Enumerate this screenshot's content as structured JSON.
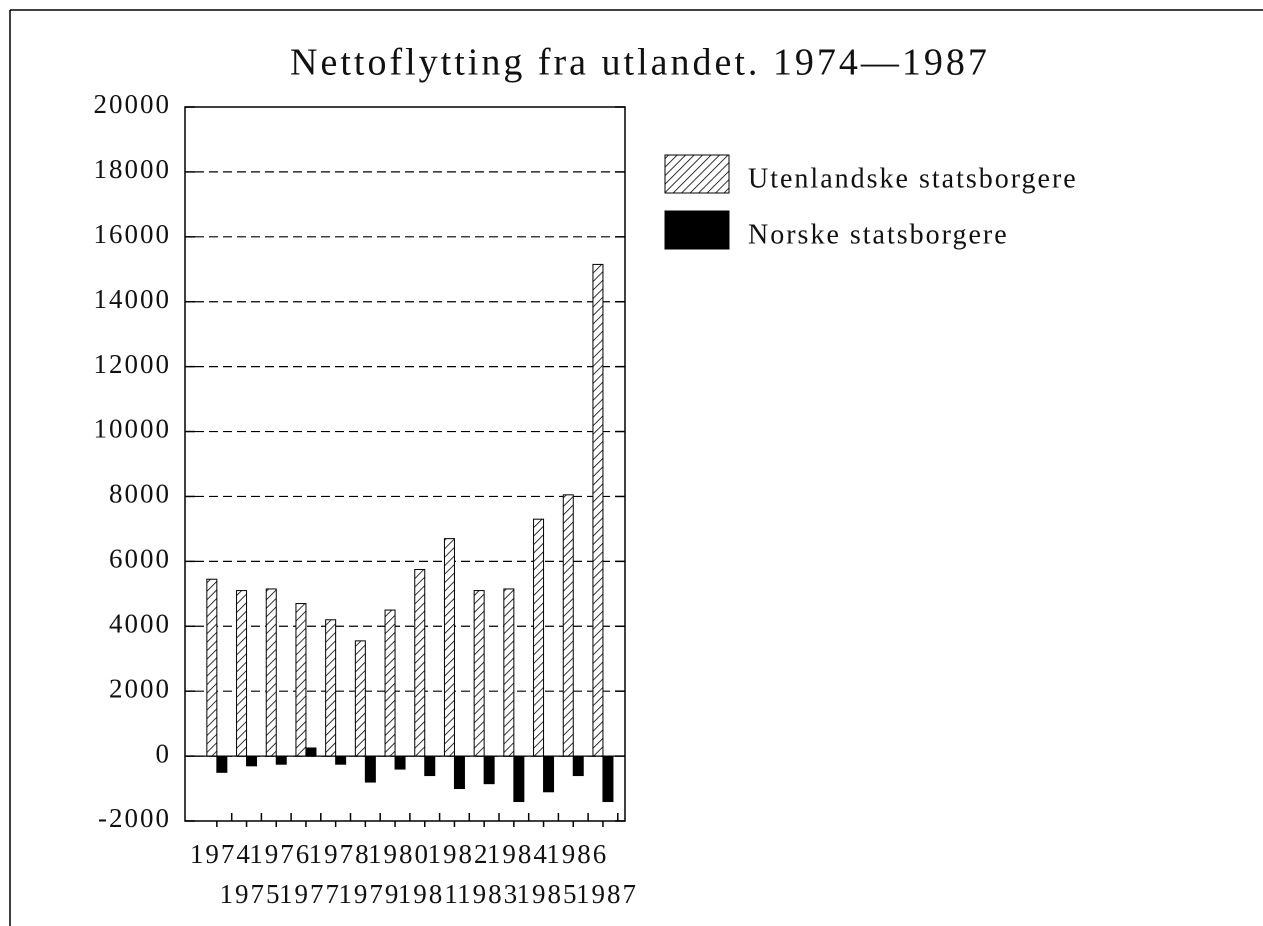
{
  "chart_data": {
    "type": "bar",
    "title": "Nettoflytting fra utlandet. 1974—1987",
    "categories": [
      "1974",
      "1975",
      "1976",
      "1977",
      "1978",
      "1979",
      "1980",
      "1981",
      "1982",
      "1983",
      "1984",
      "1985",
      "1986",
      "1987"
    ],
    "series": [
      {
        "name": "Utenlandske statsborgere",
        "color": "#000000",
        "pattern": "hatch",
        "values": [
          5450,
          5100,
          5150,
          4700,
          4200,
          3550,
          4500,
          5750,
          6700,
          5100,
          5150,
          7300,
          8050,
          15150
        ]
      },
      {
        "name": "Norske statsborgere",
        "color": "#000000",
        "pattern": "solid",
        "values": [
          -500,
          -300,
          -250,
          250,
          -250,
          -800,
          -400,
          -600,
          -1000,
          -850,
          -1400,
          -1100,
          -600,
          -1400
        ]
      }
    ],
    "ylim": [
      -2000,
      20000
    ],
    "yticks": [
      -2000,
      0,
      2000,
      4000,
      6000,
      8000,
      10000,
      12000,
      14000,
      16000,
      18000,
      20000
    ],
    "grid": true
  }
}
